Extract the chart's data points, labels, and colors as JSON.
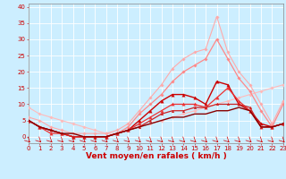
{
  "background_color": "#cceeff",
  "grid_color": "#ffffff",
  "xlabel": "Vent moyen/en rafales ( km/h )",
  "xlim": [
    0,
    23
  ],
  "ylim": [
    -2,
    41
  ],
  "yticks": [
    0,
    5,
    10,
    15,
    20,
    25,
    30,
    35,
    40
  ],
  "xticks": [
    0,
    1,
    2,
    3,
    4,
    5,
    6,
    7,
    8,
    9,
    10,
    11,
    12,
    13,
    14,
    15,
    16,
    17,
    18,
    19,
    20,
    21,
    22,
    23
  ],
  "series": [
    {
      "x": [
        0,
        1,
        2,
        3,
        4,
        5,
        6,
        7,
        8,
        9,
        10,
        11,
        12,
        13,
        14,
        15,
        16,
        17,
        18,
        19,
        20,
        21,
        22,
        23
      ],
      "y": [
        9,
        7,
        6,
        5,
        4,
        3,
        2,
        1,
        1,
        2,
        3,
        4,
        5,
        6,
        7,
        8,
        9,
        10,
        11,
        12,
        13,
        14,
        15,
        16
      ],
      "color": "#ffbbbb",
      "lw": 0.8,
      "marker": "D",
      "ms": 1.8
    },
    {
      "x": [
        0,
        1,
        2,
        3,
        4,
        5,
        6,
        7,
        8,
        9,
        10,
        11,
        12,
        13,
        14,
        15,
        16,
        17,
        18,
        19,
        20,
        21,
        22,
        23
      ],
      "y": [
        6,
        5,
        3,
        2,
        1,
        1,
        1,
        1,
        2,
        4,
        8,
        12,
        16,
        21,
        24,
        26,
        27,
        37,
        26,
        20,
        16,
        10,
        4,
        11
      ],
      "color": "#ffaaaa",
      "lw": 0.8,
      "marker": "D",
      "ms": 1.8
    },
    {
      "x": [
        0,
        1,
        2,
        3,
        4,
        5,
        6,
        7,
        8,
        9,
        10,
        11,
        12,
        13,
        14,
        15,
        16,
        17,
        18,
        19,
        20,
        21,
        22,
        23
      ],
      "y": [
        5,
        3,
        2,
        1,
        0,
        0,
        0,
        0,
        1,
        3,
        7,
        10,
        13,
        17,
        20,
        22,
        24,
        30,
        24,
        18,
        14,
        8,
        3,
        10
      ],
      "color": "#ff8888",
      "lw": 0.9,
      "marker": "D",
      "ms": 1.8
    },
    {
      "x": [
        0,
        1,
        2,
        3,
        4,
        5,
        6,
        7,
        8,
        9,
        10,
        11,
        12,
        13,
        14,
        15,
        16,
        17,
        18,
        19,
        20,
        21,
        22,
        23
      ],
      "y": [
        5,
        3,
        2,
        1,
        0,
        0,
        0,
        0,
        1,
        2,
        5,
        8,
        11,
        13,
        13,
        12,
        10,
        17,
        16,
        10,
        8,
        4,
        3,
        4
      ],
      "color": "#cc0000",
      "lw": 1.0,
      "marker": "^",
      "ms": 2.5
    },
    {
      "x": [
        0,
        1,
        2,
        3,
        4,
        5,
        6,
        7,
        8,
        9,
        10,
        11,
        12,
        13,
        14,
        15,
        16,
        17,
        18,
        19,
        20,
        21,
        22,
        23
      ],
      "y": [
        5,
        3,
        1,
        1,
        0,
        0,
        0,
        0,
        1,
        2,
        4,
        6,
        8,
        10,
        10,
        10,
        9,
        12,
        15,
        11,
        8,
        3,
        3,
        4
      ],
      "color": "#ee3333",
      "lw": 0.9,
      "marker": "^",
      "ms": 2.5
    },
    {
      "x": [
        0,
        1,
        2,
        3,
        4,
        5,
        6,
        7,
        8,
        9,
        10,
        11,
        12,
        13,
        14,
        15,
        16,
        17,
        18,
        19,
        20,
        21,
        22,
        23
      ],
      "y": [
        5,
        3,
        2,
        1,
        0,
        0,
        0,
        0,
        1,
        2,
        3,
        5,
        7,
        8,
        8,
        9,
        9,
        10,
        10,
        10,
        9,
        3,
        3,
        4
      ],
      "color": "#cc2222",
      "lw": 0.9,
      "marker": "^",
      "ms": 2.0
    },
    {
      "x": [
        0,
        1,
        2,
        3,
        4,
        5,
        6,
        7,
        8,
        9,
        10,
        11,
        12,
        13,
        14,
        15,
        16,
        17,
        18,
        19,
        20,
        21,
        22,
        23
      ],
      "y": [
        5,
        3,
        2,
        1,
        1,
        0,
        0,
        0,
        1,
        2,
        3,
        4,
        5,
        6,
        6,
        7,
        7,
        8,
        8,
        9,
        8,
        3,
        3,
        4
      ],
      "color": "#880000",
      "lw": 1.0,
      "marker": null,
      "ms": 0
    }
  ],
  "arrow_color": "#cc0000",
  "font_color": "#cc0000",
  "tick_fontsize": 5.0,
  "label_fontsize": 6.5
}
